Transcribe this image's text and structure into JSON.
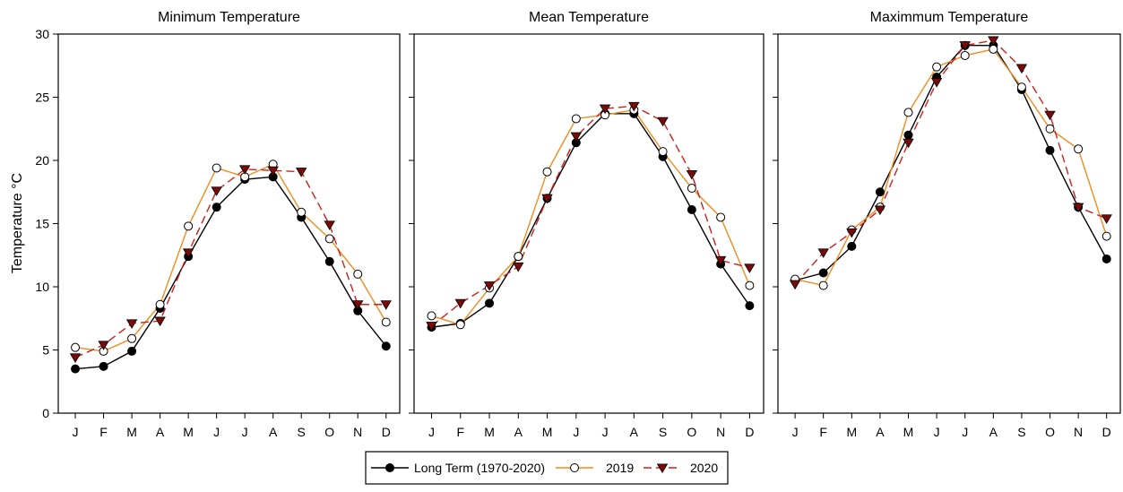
{
  "ylabel": "Temperature °C",
  "legend": {
    "items": [
      {
        "label": "Long Term (1970-2020)",
        "color": "#000000",
        "marker": "filled-circle",
        "dash": "solid"
      },
      {
        "label": "2019",
        "color": "#f08c1e",
        "marker": "open-circle",
        "dash": "solid"
      },
      {
        "label": "2020",
        "color": "#cc1f1f",
        "marker": "down-triangle",
        "dash": "dashed"
      }
    ]
  },
  "chart_data": [
    {
      "type": "line",
      "title": "Minimum Temperature",
      "categories": [
        "J",
        "F",
        "M",
        "A",
        "M",
        "J",
        "J",
        "A",
        "S",
        "O",
        "N",
        "D"
      ],
      "ylim": [
        0,
        30
      ],
      "yticks": [
        0,
        5,
        10,
        15,
        20,
        25,
        30
      ],
      "series": [
        {
          "name": "Long Term (1970-2020)",
          "values": [
            3.5,
            3.7,
            4.9,
            8.3,
            12.4,
            16.3,
            18.5,
            18.7,
            15.5,
            12.0,
            8.1,
            5.3
          ]
        },
        {
          "name": "2019",
          "values": [
            5.2,
            4.9,
            5.9,
            8.6,
            14.8,
            19.4,
            18.7,
            19.7,
            15.9,
            13.8,
            11.0,
            7.2
          ]
        },
        {
          "name": "2020",
          "values": [
            4.4,
            5.4,
            7.1,
            7.3,
            12.7,
            17.6,
            19.3,
            19.2,
            19.1,
            14.9,
            8.6,
            8.6
          ]
        }
      ]
    },
    {
      "type": "line",
      "title": "Mean Temperature",
      "categories": [
        "J",
        "F",
        "M",
        "A",
        "M",
        "J",
        "J",
        "A",
        "S",
        "O",
        "N",
        "D"
      ],
      "ylim": [
        0,
        30
      ],
      "yticks": [
        0,
        5,
        10,
        15,
        20,
        25,
        30
      ],
      "series": [
        {
          "name": "Long Term (1970-2020)",
          "values": [
            6.8,
            7.1,
            8.7,
            12.4,
            17.0,
            21.4,
            23.7,
            23.7,
            20.3,
            16.1,
            11.8,
            8.5
          ]
        },
        {
          "name": "2019",
          "values": [
            7.7,
            7.0,
            9.9,
            12.4,
            19.1,
            23.3,
            23.6,
            24.0,
            20.7,
            17.8,
            15.5,
            10.1
          ]
        },
        {
          "name": "2020",
          "values": [
            6.9,
            8.7,
            10.1,
            11.6,
            17.0,
            21.9,
            24.1,
            24.3,
            23.1,
            18.9,
            12.1,
            11.5
          ]
        }
      ]
    },
    {
      "type": "line",
      "title": "Maximmum Temperature",
      "categories": [
        "J",
        "F",
        "M",
        "A",
        "M",
        "J",
        "J",
        "A",
        "S",
        "O",
        "N",
        "D"
      ],
      "ylim": [
        0,
        30
      ],
      "yticks": [
        0,
        5,
        10,
        15,
        20,
        25,
        30
      ],
      "series": [
        {
          "name": "Long Term (1970-2020)",
          "values": [
            10.5,
            11.1,
            13.2,
            17.5,
            22.0,
            26.6,
            29.1,
            29.1,
            25.6,
            20.8,
            16.3,
            12.2
          ]
        },
        {
          "name": "2019",
          "values": [
            10.6,
            10.1,
            14.5,
            16.3,
            23.8,
            27.4,
            28.3,
            28.8,
            25.8,
            22.5,
            20.9,
            14.0
          ]
        },
        {
          "name": "2020",
          "values": [
            10.2,
            12.7,
            14.3,
            16.1,
            21.4,
            26.2,
            29.1,
            29.5,
            27.3,
            23.6,
            16.3,
            15.4
          ]
        }
      ]
    }
  ]
}
